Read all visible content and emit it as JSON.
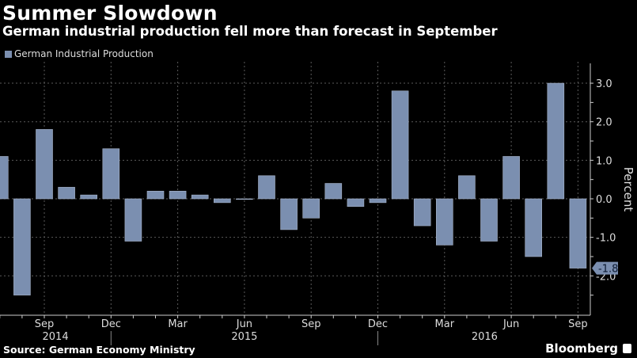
{
  "header": {
    "title": "Summer Slowdown",
    "subtitle": "German industrial production fell more than forecast in September"
  },
  "footer": {
    "source": "Source: German Economy Ministry",
    "brand": "Bloomberg"
  },
  "colors": {
    "bar": "#7b8fb0",
    "background": "#000000",
    "grid": "#666666",
    "label_bg": "#7b8fb0"
  },
  "chart_data": {
    "type": "bar",
    "title": "Summer Slowdown",
    "subtitle": "German industrial production fell more than forecast in September",
    "xlabel": "",
    "ylabel": "Percent",
    "ylim": [
      -2.5,
      3.3
    ],
    "yticks": [
      3.0,
      2.0,
      1.0,
      0.0,
      -1.0,
      -2.0
    ],
    "ytick_labels": [
      "3.0",
      "2.0",
      "1.0",
      "0.0",
      "-1.0",
      "-2.0"
    ],
    "grid": true,
    "legend": {
      "position": "top-left",
      "entries": [
        "German Industrial Production"
      ]
    },
    "y_axis_side": "right",
    "categories": [
      "Jul 2014",
      "Aug 2014",
      "Sep 2014",
      "Oct 2014",
      "Nov 2014",
      "Dec 2014",
      "Jan 2015",
      "Feb 2015",
      "Mar 2015",
      "Apr 2015",
      "May 2015",
      "Jun 2015",
      "Jul 2015",
      "Aug 2015",
      "Sep 2015",
      "Oct 2015",
      "Nov 2015",
      "Dec 2015",
      "Jan 2016",
      "Feb 2016",
      "Mar 2016",
      "Apr 2016",
      "May 2016",
      "Jun 2016",
      "Jul 2016",
      "Aug 2016",
      "Sep 2016"
    ],
    "series": [
      {
        "name": "German Industrial Production",
        "values": [
          1.1,
          -2.5,
          1.8,
          0.3,
          0.1,
          1.3,
          -1.1,
          0.2,
          0.2,
          0.1,
          -0.1,
          0.0,
          0.6,
          -0.8,
          -0.5,
          0.4,
          -0.2,
          -0.1,
          2.8,
          -0.7,
          -1.2,
          0.6,
          -1.1,
          1.1,
          -1.5,
          3.0,
          -1.8
        ]
      }
    ],
    "xtick_labels": [
      {
        "index": 2,
        "label": "Sep"
      },
      {
        "index": 5,
        "label": "Dec"
      },
      {
        "index": 8,
        "label": "Mar"
      },
      {
        "index": 11,
        "label": "Jun"
      },
      {
        "index": 14,
        "label": "Sep"
      },
      {
        "index": 17,
        "label": "Dec"
      },
      {
        "index": 20,
        "label": "Mar"
      },
      {
        "index": 23,
        "label": "Jun"
      },
      {
        "index": 26,
        "label": "Sep"
      }
    ],
    "year_labels": [
      {
        "index": 2.5,
        "label": "2014"
      },
      {
        "index": 11,
        "label": "2015"
      },
      {
        "index": 21.8,
        "label": "2016"
      }
    ],
    "year_separators": [
      5,
      17
    ],
    "annotations": [
      {
        "index": 26,
        "label": "-1.8"
      }
    ]
  }
}
